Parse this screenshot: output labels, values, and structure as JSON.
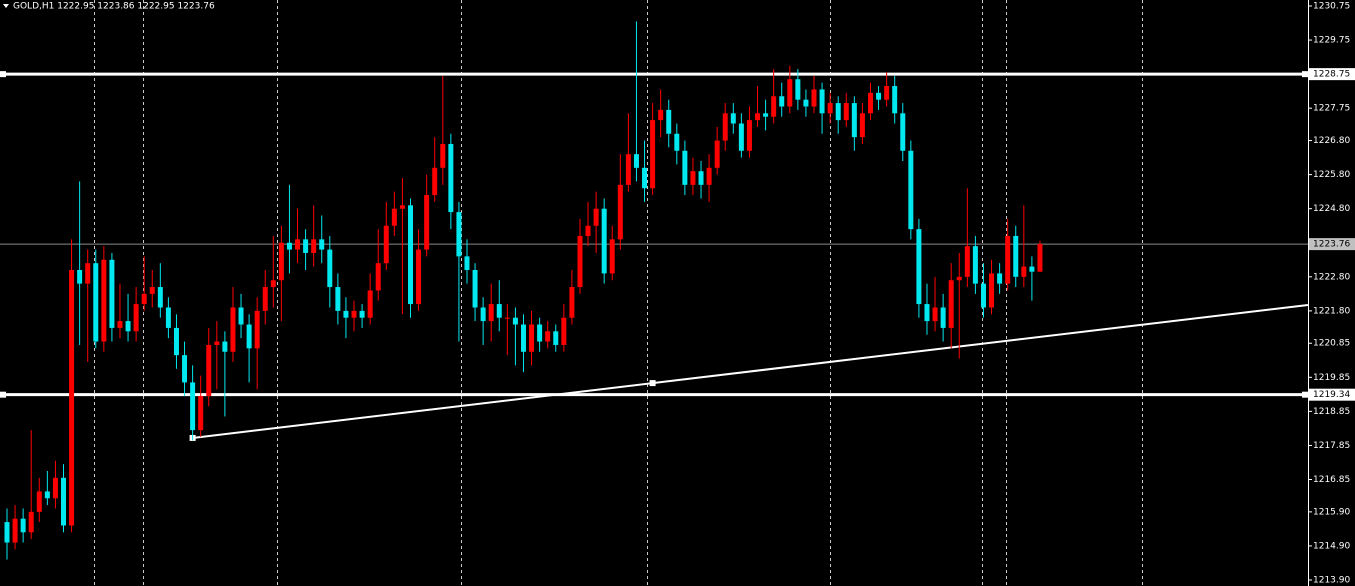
{
  "chart_data": {
    "type": "candlestick",
    "title": "GOLD,H1 1222.95 1223.86 1222.95 1223.76",
    "up_color": "#ff0000",
    "down_color": "#00e8f0",
    "ylim": [
      1213.9,
      1230.75
    ],
    "yticks": [
      {
        "value": 1230.75,
        "label": "1230.75"
      },
      {
        "value": 1229.75,
        "label": "1229.75"
      },
      {
        "value": 1227.75,
        "label": "1227.75"
      },
      {
        "value": 1226.8,
        "label": "1226.80"
      },
      {
        "value": 1225.8,
        "label": "1225.80"
      },
      {
        "value": 1224.8,
        "label": "1224.80"
      },
      {
        "value": 1222.8,
        "label": "1222.80"
      },
      {
        "value": 1221.8,
        "label": "1221.80"
      },
      {
        "value": 1220.85,
        "label": "1220.85"
      },
      {
        "value": 1219.85,
        "label": "1219.85"
      },
      {
        "value": 1218.85,
        "label": "1218.85"
      },
      {
        "value": 1217.85,
        "label": "1217.85"
      },
      {
        "value": 1216.85,
        "label": "1216.85"
      },
      {
        "value": 1215.9,
        "label": "1215.90"
      },
      {
        "value": 1214.9,
        "label": "1214.90"
      },
      {
        "value": 1213.9,
        "label": "1213.90"
      }
    ],
    "hlines": [
      1228.75,
      1219.34
    ],
    "last_price": 1223.76,
    "trendline": {
      "x": [
        23,
        80
      ],
      "y": [
        1218.07,
        1219.68
      ]
    },
    "candles": [
      [
        1215.6,
        1216.0,
        1214.5,
        1215.0
      ],
      [
        1215.0,
        1216.1,
        1214.8,
        1215.7
      ],
      [
        1215.7,
        1216.0,
        1215.0,
        1215.3
      ],
      [
        1215.3,
        1218.3,
        1215.1,
        1215.9
      ],
      [
        1215.9,
        1216.9,
        1215.6,
        1216.5
      ],
      [
        1216.5,
        1217.1,
        1216.1,
        1216.3
      ],
      [
        1216.3,
        1217.4,
        1216.0,
        1216.9
      ],
      [
        1216.9,
        1217.3,
        1215.3,
        1215.5
      ],
      [
        1215.5,
        1223.9,
        1215.3,
        1223.0
      ],
      [
        1223.0,
        1225.6,
        1220.8,
        1222.6
      ],
      [
        1222.6,
        1223.6,
        1220.3,
        1223.2
      ],
      [
        1223.2,
        1223.6,
        1220.7,
        1220.9
      ],
      [
        1220.9,
        1223.7,
        1220.6,
        1223.3
      ],
      [
        1223.3,
        1223.5,
        1220.9,
        1221.3
      ],
      [
        1221.3,
        1222.6,
        1221.0,
        1221.5
      ],
      [
        1221.5,
        1222.3,
        1220.9,
        1221.2
      ],
      [
        1221.2,
        1222.5,
        1220.9,
        1222.0
      ],
      [
        1222.0,
        1223.4,
        1221.8,
        1222.3
      ],
      [
        1222.3,
        1223.0,
        1221.9,
        1222.5
      ],
      [
        1222.5,
        1223.2,
        1221.6,
        1221.9
      ],
      [
        1221.9,
        1222.2,
        1221.0,
        1221.3
      ],
      [
        1221.3,
        1221.7,
        1220.1,
        1220.5
      ],
      [
        1220.5,
        1220.9,
        1219.3,
        1219.7
      ],
      [
        1219.7,
        1220.2,
        1218.0,
        1218.3
      ],
      [
        1218.3,
        1219.9,
        1218.1,
        1219.3
      ],
      [
        1219.3,
        1221.3,
        1219.0,
        1220.8
      ],
      [
        1220.8,
        1221.5,
        1219.5,
        1220.9
      ],
      [
        1220.9,
        1221.2,
        1218.7,
        1220.6
      ],
      [
        1220.6,
        1222.5,
        1220.3,
        1221.9
      ],
      [
        1221.9,
        1222.3,
        1221.0,
        1221.4
      ],
      [
        1221.4,
        1221.7,
        1219.7,
        1220.7
      ],
      [
        1220.7,
        1222.2,
        1219.5,
        1221.8
      ],
      [
        1221.8,
        1223.0,
        1221.4,
        1222.5
      ],
      [
        1222.5,
        1224.0,
        1221.9,
        1222.7
      ],
      [
        1222.7,
        1224.3,
        1221.5,
        1223.8
      ],
      [
        1223.8,
        1225.5,
        1222.9,
        1223.6
      ],
      [
        1223.6,
        1224.8,
        1223.2,
        1223.9
      ],
      [
        1223.9,
        1224.2,
        1223.0,
        1223.5
      ],
      [
        1223.5,
        1224.9,
        1223.1,
        1223.9
      ],
      [
        1223.9,
        1224.6,
        1223.2,
        1223.6
      ],
      [
        1223.6,
        1224.0,
        1221.9,
        1222.5
      ],
      [
        1222.5,
        1222.9,
        1221.4,
        1221.8
      ],
      [
        1221.8,
        1222.2,
        1221.0,
        1221.6
      ],
      [
        1221.6,
        1222.1,
        1221.2,
        1221.8
      ],
      [
        1221.8,
        1222.0,
        1221.3,
        1221.6
      ],
      [
        1221.6,
        1222.9,
        1221.4,
        1222.4
      ],
      [
        1222.4,
        1224.2,
        1222.1,
        1223.2
      ],
      [
        1223.2,
        1225.0,
        1223.0,
        1224.3
      ],
      [
        1224.3,
        1225.3,
        1224.0,
        1224.8
      ],
      [
        1224.8,
        1225.7,
        1221.7,
        1224.9
      ],
      [
        1224.9,
        1225.1,
        1221.6,
        1222.0
      ],
      [
        1222.0,
        1224.2,
        1221.8,
        1223.6
      ],
      [
        1223.6,
        1225.8,
        1223.4,
        1225.2
      ],
      [
        1225.2,
        1226.9,
        1225.0,
        1226.0
      ],
      [
        1226.0,
        1228.7,
        1225.5,
        1226.7
      ],
      [
        1226.7,
        1227.0,
        1224.2,
        1224.7
      ],
      [
        1224.7,
        1225.0,
        1220.9,
        1223.4
      ],
      [
        1223.4,
        1223.9,
        1222.6,
        1223.0
      ],
      [
        1223.0,
        1223.2,
        1221.5,
        1221.9
      ],
      [
        1221.9,
        1222.2,
        1220.8,
        1221.5
      ],
      [
        1221.5,
        1222.6,
        1220.9,
        1222.0
      ],
      [
        1222.0,
        1222.7,
        1221.2,
        1221.6
      ],
      [
        1221.6,
        1222.0,
        1220.5,
        1221.6
      ],
      [
        1221.6,
        1221.9,
        1220.2,
        1221.4
      ],
      [
        1221.4,
        1221.7,
        1220.0,
        1220.6
      ],
      [
        1220.6,
        1221.8,
        1220.2,
        1221.4
      ],
      [
        1221.4,
        1221.6,
        1220.6,
        1220.9
      ],
      [
        1220.9,
        1221.5,
        1220.7,
        1221.2
      ],
      [
        1221.2,
        1221.4,
        1220.6,
        1220.8
      ],
      [
        1220.8,
        1222.0,
        1220.6,
        1221.6
      ],
      [
        1221.6,
        1223.0,
        1221.4,
        1222.5
      ],
      [
        1222.5,
        1224.5,
        1222.3,
        1224.0
      ],
      [
        1224.0,
        1225.0,
        1223.7,
        1224.3
      ],
      [
        1224.3,
        1225.3,
        1223.5,
        1224.8
      ],
      [
        1224.8,
        1225.1,
        1222.6,
        1222.9
      ],
      [
        1222.9,
        1224.3,
        1222.7,
        1223.9
      ],
      [
        1223.9,
        1226.4,
        1223.6,
        1225.5
      ],
      [
        1225.5,
        1227.6,
        1225.3,
        1226.4
      ],
      [
        1226.4,
        1230.3,
        1225.6,
        1226.0
      ],
      [
        1226.0,
        1226.8,
        1225.0,
        1225.4
      ],
      [
        1225.4,
        1227.9,
        1225.2,
        1227.4
      ],
      [
        1227.4,
        1228.3,
        1226.9,
        1227.7
      ],
      [
        1227.7,
        1228.0,
        1226.6,
        1227.0
      ],
      [
        1227.0,
        1227.3,
        1226.1,
        1226.5
      ],
      [
        1226.5,
        1226.8,
        1225.2,
        1225.5
      ],
      [
        1225.5,
        1226.3,
        1225.2,
        1225.9
      ],
      [
        1225.9,
        1226.2,
        1225.1,
        1225.5
      ],
      [
        1225.5,
        1226.4,
        1225.0,
        1226.0
      ],
      [
        1226.0,
        1227.2,
        1225.8,
        1226.8
      ],
      [
        1226.8,
        1227.9,
        1226.5,
        1227.6
      ],
      [
        1227.6,
        1227.9,
        1227.0,
        1227.3
      ],
      [
        1227.3,
        1227.6,
        1226.3,
        1226.5
      ],
      [
        1226.5,
        1227.8,
        1226.3,
        1227.4
      ],
      [
        1227.4,
        1228.4,
        1227.2,
        1227.6
      ],
      [
        1227.6,
        1228.0,
        1227.1,
        1227.5
      ],
      [
        1227.5,
        1228.9,
        1227.3,
        1228.1
      ],
      [
        1228.1,
        1228.5,
        1227.5,
        1227.8
      ],
      [
        1227.8,
        1229.0,
        1227.6,
        1228.6
      ],
      [
        1228.6,
        1228.9,
        1227.7,
        1228.0
      ],
      [
        1228.0,
        1228.3,
        1227.5,
        1227.8
      ],
      [
        1227.8,
        1228.7,
        1227.6,
        1228.3
      ],
      [
        1228.3,
        1228.5,
        1227.0,
        1227.6
      ],
      [
        1227.6,
        1228.2,
        1227.3,
        1227.9
      ],
      [
        1227.9,
        1228.1,
        1227.0,
        1227.4
      ],
      [
        1227.4,
        1228.2,
        1227.2,
        1227.9
      ],
      [
        1227.9,
        1228.1,
        1226.5,
        1226.9
      ],
      [
        1226.9,
        1227.9,
        1226.7,
        1227.6
      ],
      [
        1227.6,
        1228.5,
        1227.4,
        1228.2
      ],
      [
        1228.2,
        1228.4,
        1227.7,
        1228.0
      ],
      [
        1228.0,
        1228.8,
        1227.8,
        1228.4
      ],
      [
        1228.4,
        1228.7,
        1227.3,
        1227.6
      ],
      [
        1227.6,
        1227.9,
        1226.2,
        1226.5
      ],
      [
        1226.5,
        1226.8,
        1223.9,
        1224.2
      ],
      [
        1224.2,
        1224.5,
        1221.6,
        1222.0
      ],
      [
        1222.0,
        1222.6,
        1221.1,
        1221.5
      ],
      [
        1221.5,
        1222.8,
        1221.2,
        1221.9
      ],
      [
        1221.9,
        1222.3,
        1220.9,
        1221.3
      ],
      [
        1221.3,
        1223.2,
        1220.7,
        1222.7
      ],
      [
        1222.7,
        1223.5,
        1220.4,
        1222.8
      ],
      [
        1222.8,
        1225.4,
        1222.5,
        1223.7
      ],
      [
        1223.7,
        1224.0,
        1222.3,
        1222.6
      ],
      [
        1222.6,
        1223.2,
        1221.6,
        1221.9
      ],
      [
        1221.9,
        1223.3,
        1221.7,
        1222.9
      ],
      [
        1222.9,
        1223.2,
        1222.3,
        1222.6
      ],
      [
        1222.6,
        1224.5,
        1222.4,
        1224.0
      ],
      [
        1224.0,
        1224.3,
        1222.5,
        1222.8
      ],
      [
        1222.8,
        1224.9,
        1222.5,
        1223.1
      ],
      [
        1223.1,
        1223.4,
        1222.1,
        1222.95
      ],
      [
        1222.95,
        1223.86,
        1222.95,
        1223.76
      ]
    ]
  }
}
